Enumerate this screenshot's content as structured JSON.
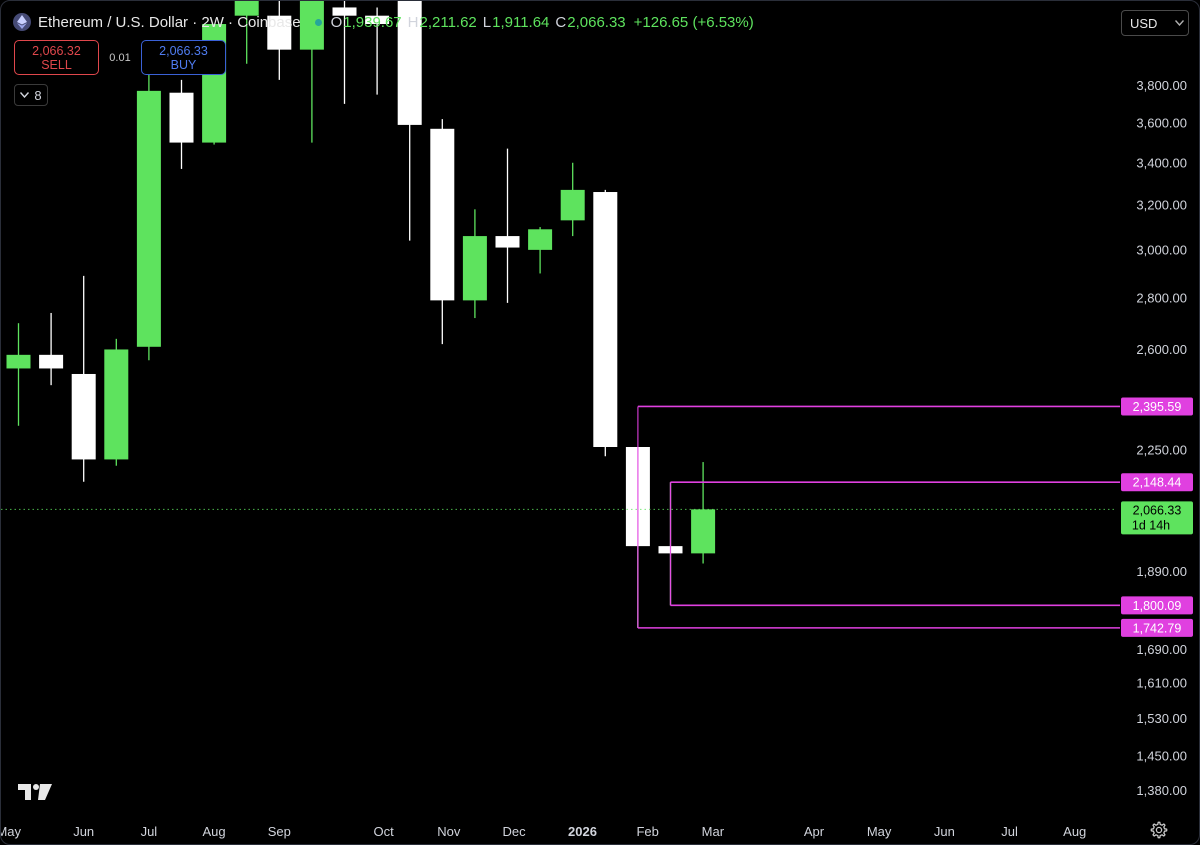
{
  "header": {
    "title": "Ethereum / U.S. Dollar · 2W · Coinbase",
    "ohlc": {
      "o_label": "O",
      "o": "1,939.67",
      "h_label": "H",
      "h": "2,211.62",
      "l_label": "L",
      "l": "1,911.64",
      "c_label": "C",
      "c": "2,066.33",
      "change": "+126.65 (+6.53%)"
    }
  },
  "trade": {
    "sell_price": "2,066.32",
    "sell_label": "SELL",
    "spread": "0.01",
    "buy_price": "2,066.33",
    "buy_label": "BUY"
  },
  "indicators_count": "8",
  "currency": "USD",
  "colors": {
    "up": "#5ee35e",
    "down": "#ffffff",
    "level_line": "#e040e0",
    "last_price": "#5ee35e",
    "background": "#000000"
  },
  "chart_data": {
    "type": "candlestick",
    "symbol": "Ethereum / U.S. Dollar",
    "interval": "2W",
    "exchange": "Coinbase",
    "y_scale": "log",
    "ylim": [
      1330,
      4050
    ],
    "y_ticks": [
      {
        "value": 3800,
        "label": "3,800.00"
      },
      {
        "value": 3600,
        "label": "3,600.00"
      },
      {
        "value": 3400,
        "label": "3,400.00"
      },
      {
        "value": 3200,
        "label": "3,200.00"
      },
      {
        "value": 3000,
        "label": "3,000.00"
      },
      {
        "value": 2800,
        "label": "2,800.00"
      },
      {
        "value": 2600,
        "label": "2,600.00"
      },
      {
        "value": 2250,
        "label": "2,250.00"
      },
      {
        "value": 1890,
        "label": "1,890.00"
      },
      {
        "value": 1690,
        "label": "1,690.00"
      },
      {
        "value": 1610,
        "label": "1,610.00"
      },
      {
        "value": 1530,
        "label": "1,530.00"
      },
      {
        "value": 1450,
        "label": "1,450.00"
      },
      {
        "value": 1380,
        "label": "1,380.00"
      }
    ],
    "x_labels": [
      {
        "label": "May",
        "bar": -0.3
      },
      {
        "label": "Jun",
        "bar": 2.0
      },
      {
        "label": "Jul",
        "bar": 4.0
      },
      {
        "label": "Aug",
        "bar": 6.0
      },
      {
        "label": "Sep",
        "bar": 8.0
      },
      {
        "label": "Oct",
        "bar": 11.2
      },
      {
        "label": "Nov",
        "bar": 13.2
      },
      {
        "label": "Dec",
        "bar": 15.2
      },
      {
        "label": "2026",
        "bar": 17.3,
        "bold": true
      },
      {
        "label": "Feb",
        "bar": 19.3
      },
      {
        "label": "Mar",
        "bar": 21.3
      },
      {
        "label": "Apr",
        "bar": 24.4
      },
      {
        "label": "May",
        "bar": 26.4
      },
      {
        "label": "Jun",
        "bar": 28.4
      },
      {
        "label": "Jul",
        "bar": 30.4
      },
      {
        "label": "Aug",
        "bar": 32.4
      }
    ],
    "candles": [
      {
        "o": 2530,
        "h": 2700,
        "l": 2330,
        "c": 2580
      },
      {
        "o": 2580,
        "h": 2740,
        "l": 2470,
        "c": 2530
      },
      {
        "o": 2510,
        "h": 2890,
        "l": 2150,
        "c": 2220
      },
      {
        "o": 2220,
        "h": 2640,
        "l": 2200,
        "c": 2600
      },
      {
        "o": 2610,
        "h": 3860,
        "l": 2560,
        "c": 3770
      },
      {
        "o": 3760,
        "h": 3830,
        "l": 3370,
        "c": 3500
      },
      {
        "o": 3500,
        "h": 4150,
        "l": 3490,
        "c": 4150
      },
      {
        "o": 4200,
        "h": 4500,
        "l": 3920,
        "c": 4300
      },
      {
        "o": 4200,
        "h": 4300,
        "l": 3830,
        "c": 4000
      },
      {
        "o": 4000,
        "h": 4900,
        "l": 3500,
        "c": 4500
      },
      {
        "o": 4250,
        "h": 4400,
        "l": 3700,
        "c": 4200
      },
      {
        "o": 4200,
        "h": 4250,
        "l": 3750,
        "c": 4150
      },
      {
        "o": 4400,
        "h": 4500,
        "l": 3040,
        "c": 3590
      },
      {
        "o": 3570,
        "h": 3620,
        "l": 2620,
        "c": 2790
      },
      {
        "o": 2790,
        "h": 3180,
        "l": 2720,
        "c": 3060
      },
      {
        "o": 3060,
        "h": 3470,
        "l": 2780,
        "c": 3010
      },
      {
        "o": 3000,
        "h": 3100,
        "l": 2900,
        "c": 3090
      },
      {
        "o": 3130,
        "h": 3400,
        "l": 3060,
        "c": 3270
      },
      {
        "o": 3260,
        "h": 3270,
        "l": 2230,
        "c": 2260
      },
      {
        "o": 2260,
        "h": 2260,
        "l": 1742.79,
        "c": 1960
      },
      {
        "o": 1960,
        "h": 2148.44,
        "l": 1800.09,
        "c": 1939.67
      },
      {
        "o": 1939.67,
        "h": 2211.62,
        "l": 1911.64,
        "c": 2066.33
      }
    ],
    "levels": [
      {
        "value": 2395.59,
        "label": "2,395.59",
        "from_bar": 19
      },
      {
        "value": 2148.44,
        "label": "2,148.44",
        "from_bar": 20
      },
      {
        "value": 1800.09,
        "label": "1,800.09",
        "from_bar": 20
      },
      {
        "value": 1742.79,
        "label": "1,742.79",
        "from_bar": 19
      }
    ],
    "last_price": {
      "value": 2066.33,
      "label": "2,066.33",
      "countdown": "1d 14h"
    }
  }
}
